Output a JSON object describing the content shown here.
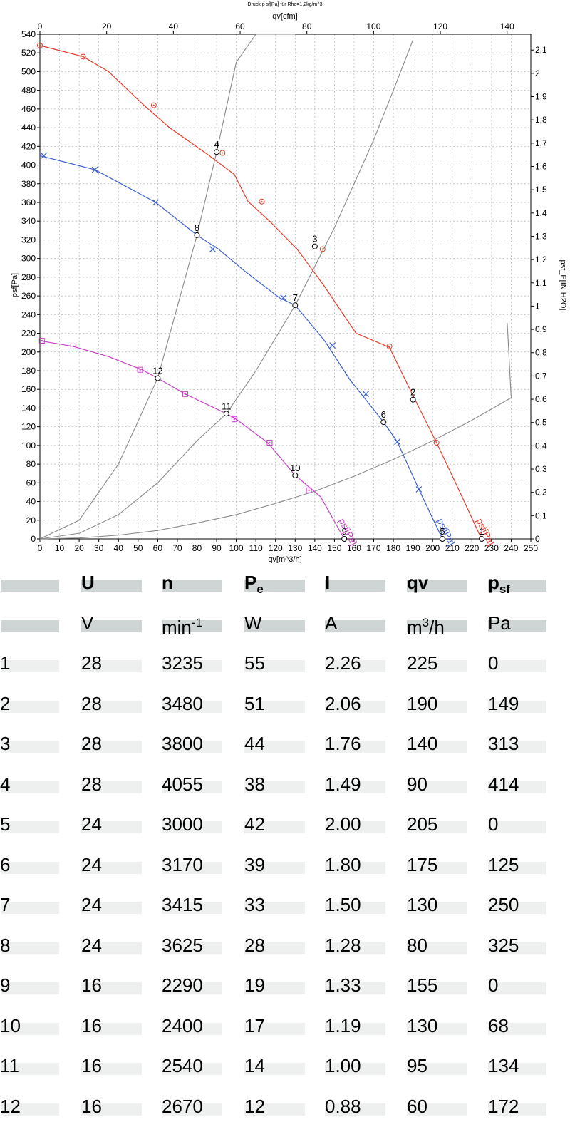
{
  "chart_data": {
    "type": "line",
    "title": "Druck p sf[Pa] für Rho=1,2kg/m^3",
    "xlabel": "qv[m^3/h]",
    "x2label": "qv[cfm]",
    "ylabel": "psf[Pa]",
    "y2label": "psf_E[IN H2O]",
    "xlim": [
      0,
      250
    ],
    "x2lim": [
      0,
      147.1
    ],
    "ylim": [
      0,
      540
    ],
    "y2lim": [
      0,
      2.168
    ],
    "xticks": [
      0,
      10,
      20,
      30,
      40,
      50,
      60,
      70,
      80,
      90,
      100,
      110,
      120,
      130,
      140,
      150,
      160,
      170,
      180,
      190,
      200,
      210,
      220,
      230,
      240,
      250
    ],
    "x2ticks": [
      0,
      20,
      40,
      60,
      80,
      100,
      120,
      140
    ],
    "yticks": [
      0,
      20,
      40,
      60,
      80,
      100,
      120,
      140,
      160,
      180,
      200,
      220,
      240,
      260,
      280,
      300,
      320,
      340,
      360,
      380,
      400,
      420,
      440,
      460,
      480,
      500,
      520,
      540
    ],
    "y2ticks": [
      "0",
      "0,1",
      "0,2",
      "0,3",
      "0,4",
      "0,5",
      "0,6",
      "0,7",
      "0,8",
      "0,9",
      "1",
      "1,1",
      "1,2",
      "1,3",
      "1,4",
      "1,5",
      "1,6",
      "1,7",
      "1,8",
      "1,9",
      "2",
      "2,1"
    ],
    "grid": true,
    "series": [
      {
        "name": "psf[Pa]",
        "color": "#e8392a",
        "marker": "circle",
        "x": [
          0,
          22,
          35,
          53,
          66,
          85,
          99,
          106,
          117,
          131,
          145,
          161,
          178,
          191,
          202,
          215,
          224,
          225
        ],
        "y": [
          528,
          516,
          500,
          464,
          440,
          412,
          390,
          361,
          340,
          310,
          270,
          220,
          205,
          149,
          103,
          45,
          4,
          0
        ],
        "markers_x": [
          0,
          22,
          58,
          93,
          113,
          144,
          178,
          202
        ],
        "markers_y": [
          528,
          516,
          464,
          413,
          361,
          310,
          206,
          103
        ]
      },
      {
        "name": "psf[Pa]",
        "color": "#3a5fcd",
        "marker": "x",
        "x": [
          0,
          28,
          59,
          80,
          91,
          104,
          122,
          130,
          145,
          158,
          175,
          182,
          193,
          205
        ],
        "y": [
          410,
          395,
          360,
          325,
          310,
          287,
          258,
          250,
          212,
          170,
          125,
          104,
          53,
          0
        ],
        "markers_x": [
          2,
          28,
          59,
          88,
          124,
          149,
          166,
          182,
          193
        ],
        "markers_y": [
          410,
          395,
          360,
          310,
          258,
          207,
          155,
          104,
          53
        ]
      },
      {
        "name": "psf[Pa]",
        "color": "#c640c6",
        "marker": "square",
        "x": [
          0,
          17,
          35,
          52,
          60,
          74,
          95,
          100,
          116,
          130,
          143,
          155
        ],
        "y": [
          212,
          206,
          195,
          181,
          172,
          155,
          134,
          128,
          103,
          68,
          45,
          0
        ],
        "markers_x": [
          1,
          17,
          51,
          74,
          99,
          117,
          137
        ],
        "markers_y": [
          212,
          206,
          181,
          155,
          128,
          103,
          52
        ]
      }
    ],
    "system_curves": [
      {
        "x": [
          0,
          20,
          40,
          60,
          80,
          100,
          120,
          140,
          160,
          180,
          200,
          220,
          240
        ],
        "y": [
          0,
          1,
          4,
          9,
          17,
          26,
          38,
          51,
          67,
          85,
          105,
          127,
          151
        ],
        "end_x": 238,
        "end_y": 231
      },
      {
        "x": [
          0,
          20,
          40,
          60,
          80,
          95,
          110,
          130,
          150,
          170,
          180,
          190
        ],
        "y": [
          0,
          6,
          26,
          60,
          105,
          134,
          180,
          250,
          333,
          427,
          480,
          534
        ]
      },
      {
        "x": [
          0,
          20,
          40,
          60,
          80,
          90,
          100,
          110,
          120,
          130
        ],
        "y": [
          0,
          20,
          80,
          172,
          325,
          414,
          510,
          540,
          540,
          540
        ]
      }
    ],
    "operating_points": [
      {
        "label": "1",
        "x": 225,
        "y": 0
      },
      {
        "label": "2",
        "x": 190,
        "y": 149
      },
      {
        "label": "3",
        "x": 140,
        "y": 313
      },
      {
        "label": "4",
        "x": 90,
        "y": 414
      },
      {
        "label": "5",
        "x": 205,
        "y": 0
      },
      {
        "label": "6",
        "x": 175,
        "y": 125
      },
      {
        "label": "7",
        "x": 130,
        "y": 250
      },
      {
        "label": "8",
        "x": 80,
        "y": 325
      },
      {
        "label": "9",
        "x": 155,
        "y": 0
      },
      {
        "label": "10",
        "x": 130,
        "y": 68
      },
      {
        "label": "11",
        "x": 95,
        "y": 134
      },
      {
        "label": "12",
        "x": 60,
        "y": 172
      }
    ]
  },
  "table": {
    "headers": {
      "u": "U",
      "n": "n",
      "pe": "P",
      "pe_sub": "e",
      "i": "I",
      "qv": "qv",
      "psf": "p",
      "psf_sub": "sf"
    },
    "units": {
      "u": "V",
      "n": "min",
      "n_sup": "-1",
      "pe": "W",
      "i": "A",
      "qv": "m",
      "qv_sup": "3",
      "qv_tail": "/h",
      "psf": "Pa"
    },
    "rows": [
      [
        "1",
        "28",
        "3235",
        "55",
        "2.26",
        "225",
        "0"
      ],
      [
        "2",
        "28",
        "3480",
        "51",
        "2.06",
        "190",
        "149"
      ],
      [
        "3",
        "28",
        "3800",
        "44",
        "1.76",
        "140",
        "313"
      ],
      [
        "4",
        "28",
        "4055",
        "38",
        "1.49",
        "90",
        "414"
      ],
      [
        "5",
        "24",
        "3000",
        "42",
        "2.00",
        "205",
        "0"
      ],
      [
        "6",
        "24",
        "3170",
        "39",
        "1.80",
        "175",
        "125"
      ],
      [
        "7",
        "24",
        "3415",
        "33",
        "1.50",
        "130",
        "250"
      ],
      [
        "8",
        "24",
        "3625",
        "28",
        "1.28",
        "80",
        "325"
      ],
      [
        "9",
        "16",
        "2290",
        "19",
        "1.33",
        "155",
        "0"
      ],
      [
        "10",
        "16",
        "2400",
        "17",
        "1.19",
        "130",
        "68"
      ],
      [
        "11",
        "16",
        "2540",
        "14",
        "1.00",
        "95",
        "134"
      ],
      [
        "12",
        "16",
        "2670",
        "12",
        "0.88",
        "60",
        "172"
      ]
    ]
  }
}
